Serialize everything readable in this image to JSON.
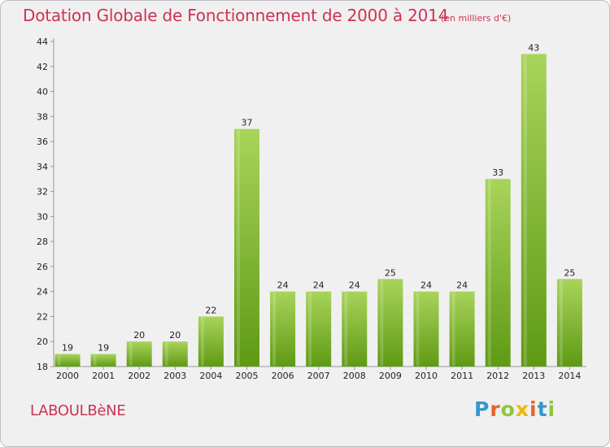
{
  "header": {
    "title": "Dotation Globale de Fonctionnement de 2000 à 2014",
    "subtitle": "(en milliers d'€)"
  },
  "footer": {
    "commune": "LABOULBèNE",
    "brand": "Proxiti",
    "brand_colors": [
      "#3399cc",
      "#e8632b",
      "#8cc63f",
      "#f2b600",
      "#e8632b",
      "#3399cc",
      "#8cc63f"
    ]
  },
  "chart_data": {
    "type": "bar",
    "categories": [
      "2000",
      "2001",
      "2002",
      "2003",
      "2004",
      "2005",
      "2006",
      "2007",
      "2008",
      "2009",
      "2010",
      "2011",
      "2012",
      "2013",
      "2014"
    ],
    "values": [
      19,
      19,
      20,
      20,
      22,
      37,
      24,
      24,
      24,
      25,
      24,
      24,
      33,
      43,
      25
    ],
    "data_labels": [
      "19",
      "19",
      "20",
      "20",
      "22",
      "37",
      "24",
      "24",
      "24",
      "25",
      "24",
      "24",
      "33",
      "43",
      "25"
    ],
    "ylim": [
      18,
      44
    ],
    "yticks": [
      18,
      20,
      22,
      24,
      26,
      28,
      30,
      32,
      34,
      36,
      38,
      40,
      42,
      44
    ],
    "grid": false,
    "colors": {
      "bar_top": "#a8d45a",
      "bar_bottom": "#5f9a14",
      "axis": "#999999"
    }
  }
}
